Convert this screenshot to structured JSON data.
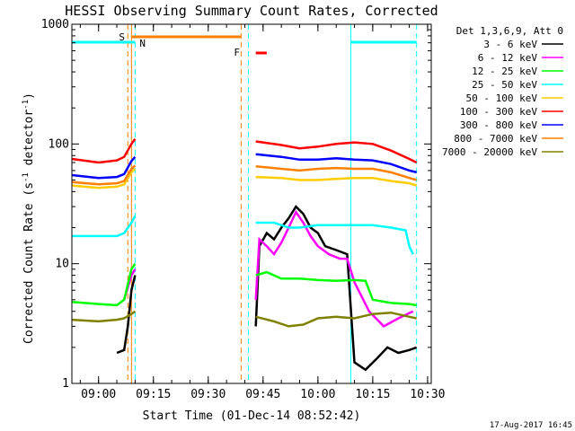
{
  "chart_data": {
    "type": "line",
    "title": "HESSI Observing Summary Count Rates, Corrected",
    "xlabel": "Start Time (01-Dec-14 08:52:42)",
    "ylabel": "Corrected Count Rate (s",
    "ylabel_sup1": "-1",
    "ylabel_mid": " detector",
    "ylabel_sup2": "-1",
    "ylabel_end": ")",
    "yscale": "log",
    "ylim": [
      1,
      1000
    ],
    "xlim": [
      "08:52:42",
      "10:31:00"
    ],
    "xticks": [
      "09:00",
      "09:15",
      "09:30",
      "09:45",
      "10:00",
      "10:15",
      "10:30"
    ],
    "yticks": [
      "1",
      "10",
      "100",
      "1000"
    ],
    "legend_title": "Det 1,3,6,9, Att 0",
    "legend_position": "top-right",
    "series": [
      {
        "name": "3 - 6 keV",
        "color": "#000000",
        "points": [
          [
            "08:52:42",
            1.4
          ],
          [
            "09:05",
            1.8
          ],
          [
            "09:07",
            1.9
          ],
          [
            "09:08",
            3
          ],
          [
            "09:09",
            6
          ],
          [
            "09:10",
            8
          ],
          [
            "09:43",
            3
          ],
          [
            "09:44",
            14
          ],
          [
            "09:46",
            18
          ],
          [
            "09:48",
            16
          ],
          [
            "09:50",
            20
          ],
          [
            "09:52",
            24
          ],
          [
            "09:54",
            30
          ],
          [
            "09:56",
            26
          ],
          [
            "09:58",
            20
          ],
          [
            "10:00",
            18
          ],
          [
            "10:02",
            14
          ],
          [
            "10:05",
            13
          ],
          [
            "10:08",
            12
          ],
          [
            "10:10",
            1.5
          ],
          [
            "10:13",
            1.3
          ],
          [
            "10:16",
            1.6
          ],
          [
            "10:19",
            2
          ],
          [
            "10:22",
            1.8
          ],
          [
            "10:25",
            1.9
          ],
          [
            "10:27",
            2
          ]
        ]
      },
      {
        "name": "6 - 12 keV",
        "color": "#ff00ff",
        "points": [
          [
            "09:07",
            5
          ],
          [
            "09:09",
            8
          ],
          [
            "09:10",
            9
          ],
          [
            "09:43",
            5
          ],
          [
            "09:44",
            16
          ],
          [
            "09:46",
            14
          ],
          [
            "09:48",
            12
          ],
          [
            "09:50",
            15
          ],
          [
            "09:52",
            20
          ],
          [
            "09:54",
            27
          ],
          [
            "09:56",
            22
          ],
          [
            "09:58",
            17
          ],
          [
            "10:00",
            14
          ],
          [
            "10:03",
            12
          ],
          [
            "10:06",
            11
          ],
          [
            "10:08",
            11
          ],
          [
            "10:10",
            7
          ],
          [
            "10:14",
            4
          ],
          [
            "10:18",
            3
          ],
          [
            "10:22",
            3.5
          ],
          [
            "10:26",
            4
          ]
        ]
      },
      {
        "name": "12 - 25 keV",
        "color": "#00ff00",
        "points": [
          [
            "08:52:42",
            4.8
          ],
          [
            "09:00",
            4.6
          ],
          [
            "09:05",
            4.5
          ],
          [
            "09:07",
            5
          ],
          [
            "09:09",
            9
          ],
          [
            "09:10",
            10
          ],
          [
            "09:43",
            8
          ],
          [
            "09:46",
            8.5
          ],
          [
            "09:50",
            7.5
          ],
          [
            "09:55",
            7.5
          ],
          [
            "10:00",
            7.3
          ],
          [
            "10:05",
            7.2
          ],
          [
            "10:10",
            7.3
          ],
          [
            "10:13",
            7.2
          ],
          [
            "10:15",
            5
          ],
          [
            "10:20",
            4.7
          ],
          [
            "10:25",
            4.6
          ],
          [
            "10:27",
            4.5
          ]
        ]
      },
      {
        "name": "25 - 50 keV",
        "color": "#00ffff",
        "points": [
          [
            "08:52:42",
            17
          ],
          [
            "09:00",
            17
          ],
          [
            "09:05",
            17
          ],
          [
            "09:07",
            18
          ],
          [
            "09:09",
            22
          ],
          [
            "09:10",
            25
          ],
          [
            "09:43",
            22
          ],
          [
            "09:48",
            22
          ],
          [
            "09:52",
            20
          ],
          [
            "09:55",
            20
          ],
          [
            "10:00",
            21
          ],
          [
            "10:05",
            21
          ],
          [
            "10:10",
            21
          ],
          [
            "10:15",
            21
          ],
          [
            "10:20",
            20
          ],
          [
            "10:24",
            19
          ],
          [
            "10:25",
            14
          ],
          [
            "10:26",
            12
          ]
        ]
      },
      {
        "name": "50 - 100 keV",
        "color": "#ffcc00",
        "points": [
          [
            "08:52:42",
            45
          ],
          [
            "09:00",
            43
          ],
          [
            "09:05",
            44
          ],
          [
            "09:07",
            46
          ],
          [
            "09:09",
            58
          ],
          [
            "09:10",
            62
          ],
          [
            "09:43",
            53
          ],
          [
            "09:50",
            52
          ],
          [
            "09:55",
            50
          ],
          [
            "10:00",
            50
          ],
          [
            "10:05",
            51
          ],
          [
            "10:10",
            52
          ],
          [
            "10:15",
            52
          ],
          [
            "10:20",
            49
          ],
          [
            "10:25",
            47
          ],
          [
            "10:27",
            45
          ]
        ]
      },
      {
        "name": "100 - 300 keV",
        "color": "#ff0000",
        "points": [
          [
            "08:52:42",
            75
          ],
          [
            "09:00",
            70
          ],
          [
            "09:05",
            73
          ],
          [
            "09:07",
            78
          ],
          [
            "09:09",
            100
          ],
          [
            "09:10",
            110
          ],
          [
            "09:43",
            105
          ],
          [
            "09:50",
            98
          ],
          [
            "09:55",
            92
          ],
          [
            "10:00",
            95
          ],
          [
            "10:05",
            100
          ],
          [
            "10:10",
            103
          ],
          [
            "10:15",
            100
          ],
          [
            "10:20",
            88
          ],
          [
            "10:25",
            75
          ],
          [
            "10:27",
            70
          ]
        ]
      },
      {
        "name": "300 - 800 keV",
        "color": "#0000ff",
        "points": [
          [
            "08:52:42",
            55
          ],
          [
            "09:00",
            52
          ],
          [
            "09:05",
            53
          ],
          [
            "09:07",
            56
          ],
          [
            "09:09",
            72
          ],
          [
            "09:10",
            78
          ],
          [
            "09:43",
            82
          ],
          [
            "09:50",
            78
          ],
          [
            "09:55",
            74
          ],
          [
            "10:00",
            74
          ],
          [
            "10:05",
            76
          ],
          [
            "10:10",
            74
          ],
          [
            "10:15",
            73
          ],
          [
            "10:20",
            68
          ],
          [
            "10:25",
            60
          ],
          [
            "10:27",
            58
          ]
        ]
      },
      {
        "name": "800 - 7000 keV",
        "color": "#ff8000",
        "points": [
          [
            "08:52:42",
            48
          ],
          [
            "09:00",
            46
          ],
          [
            "09:05",
            47
          ],
          [
            "09:07",
            49
          ],
          [
            "09:09",
            62
          ],
          [
            "09:10",
            66
          ],
          [
            "09:43",
            65
          ],
          [
            "09:50",
            62
          ],
          [
            "09:55",
            60
          ],
          [
            "10:00",
            62
          ],
          [
            "10:05",
            63
          ],
          [
            "10:10",
            62
          ],
          [
            "10:15",
            62
          ],
          [
            "10:20",
            58
          ],
          [
            "10:25",
            52
          ],
          [
            "10:27",
            50
          ]
        ]
      },
      {
        "name": "7000 - 20000 keV",
        "color": "#808000",
        "points": [
          [
            "08:52:42",
            3.4
          ],
          [
            "09:00",
            3.3
          ],
          [
            "09:05",
            3.4
          ],
          [
            "09:07",
            3.5
          ],
          [
            "09:09",
            3.8
          ],
          [
            "09:10",
            4
          ],
          [
            "09:43",
            3.6
          ],
          [
            "09:48",
            3.3
          ],
          [
            "09:52",
            3.0
          ],
          [
            "09:56",
            3.1
          ],
          [
            "10:00",
            3.5
          ],
          [
            "10:05",
            3.6
          ],
          [
            "10:10",
            3.5
          ],
          [
            "10:15",
            3.8
          ],
          [
            "10:20",
            3.9
          ],
          [
            "10:25",
            3.6
          ],
          [
            "10:27",
            3.5
          ]
        ]
      }
    ],
    "flags": {
      "saa_label": "S",
      "night_label": "N",
      "flare_label": "F",
      "night_bars": [
        [
          "08:52:42",
          "09:10"
        ],
        [
          "10:09",
          "10:27"
        ]
      ],
      "saa_bar": [
        "09:09",
        "09:39"
      ],
      "flare_bar": [
        "09:43",
        "09:46"
      ],
      "boundaries": [
        {
          "t": "09:08",
          "color": "#ff8000"
        },
        {
          "t": "09:10",
          "color": "#00ffff"
        },
        {
          "t": "09:39",
          "color": "#ff8000"
        },
        {
          "t": "09:41",
          "color": "#00ffff"
        },
        {
          "t": "10:27",
          "color": "#00ffff"
        }
      ],
      "solid_lines": [
        {
          "t": "08:52:42",
          "color": "#00ffff"
        },
        {
          "t": "09:09",
          "color": "#ff8000"
        },
        {
          "t": "10:09",
          "color": "#00ffff"
        }
      ]
    }
  },
  "timestamp": "17-Aug-2017 16:45"
}
